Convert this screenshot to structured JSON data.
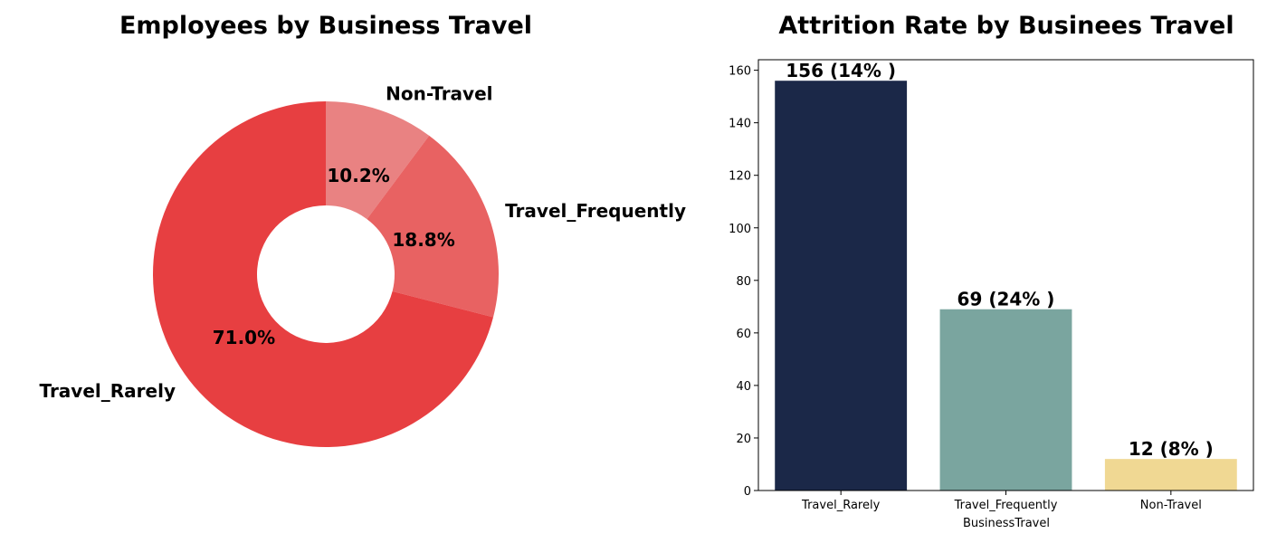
{
  "chart_data": [
    {
      "type": "pie",
      "title": "Employees by Business Travel",
      "donut": true,
      "slices": [
        {
          "label": "Non-Travel",
          "percent": 10.2,
          "percent_label": "10.2%",
          "color": "#e98282"
        },
        {
          "label": "Travel_Frequently",
          "percent": 18.8,
          "percent_label": "18.8%",
          "color": "#e86262"
        },
        {
          "label": "Travel_Rarely",
          "percent": 71.0,
          "percent_label": "71.0%",
          "color": "#e73f41"
        }
      ]
    },
    {
      "type": "bar",
      "title": "Attrition Rate by Businees Travel",
      "xlabel": "BusinessTravel",
      "ylabel": "",
      "ylim": [
        0,
        164
      ],
      "yticks": [
        0,
        20,
        40,
        60,
        80,
        100,
        120,
        140,
        160
      ],
      "categories": [
        "Travel_Rarely",
        "Travel_Frequently",
        "Non-Travel"
      ],
      "values": [
        156,
        69,
        12
      ],
      "value_labels": [
        "156 (14% )",
        "69 (24% )",
        "12 (8% )"
      ],
      "colors": [
        "#1b2848",
        "#7aa59f",
        "#f0d893"
      ]
    }
  ]
}
